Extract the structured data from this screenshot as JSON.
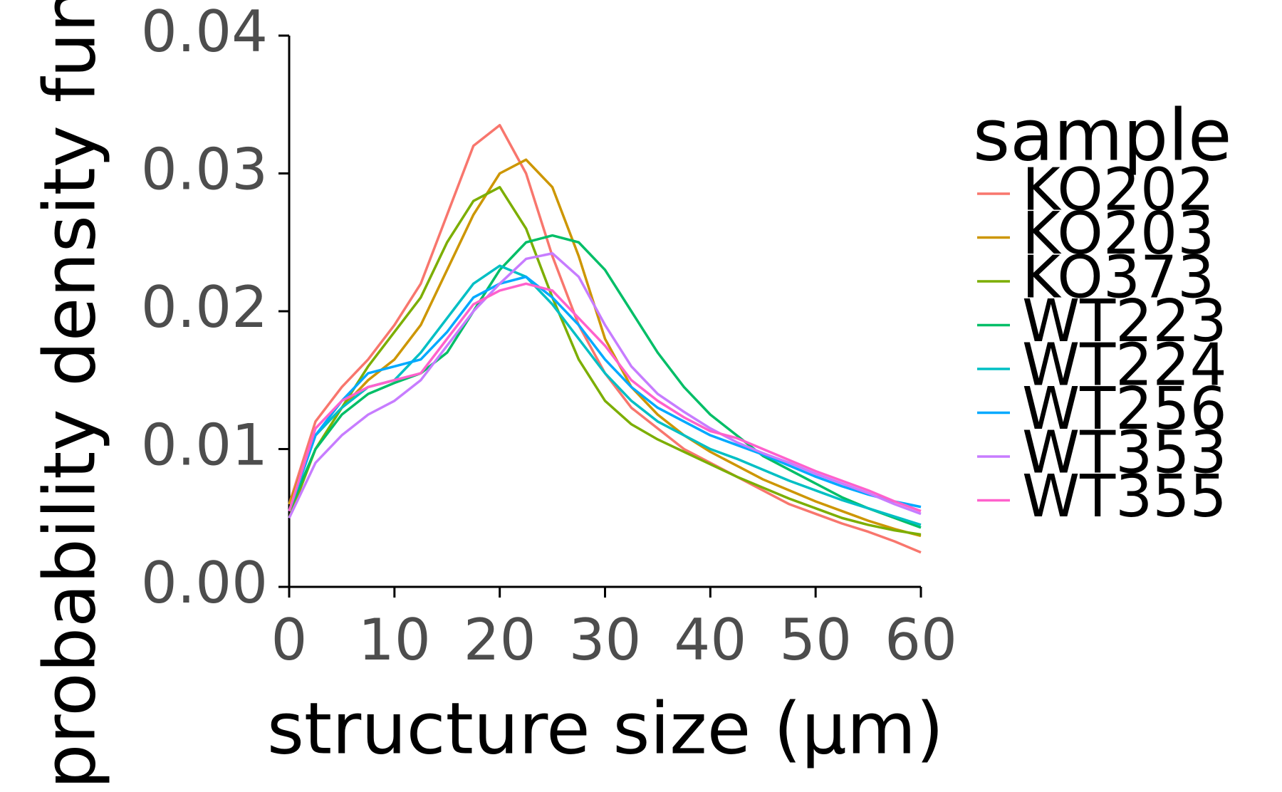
{
  "chart_data": {
    "type": "line",
    "xlabel": "structure size (µm)",
    "ylabel": "probability density function",
    "legend_title": "sample",
    "x": [
      0,
      2.5,
      5,
      7.5,
      10,
      12.5,
      15,
      17.5,
      20,
      22.5,
      25,
      27.5,
      30,
      32.5,
      35,
      37.5,
      40,
      42.5,
      45,
      47.5,
      50,
      52.5,
      55,
      57.5,
      60
    ],
    "xlim": [
      0,
      60
    ],
    "xticks": [
      0,
      10,
      20,
      30,
      40,
      50,
      60
    ],
    "ylim": [
      0,
      0.04
    ],
    "yticks": [
      {
        "value": 0,
        "label": "0.00"
      },
      {
        "value": 0.01,
        "label": "0.01"
      },
      {
        "value": 0.02,
        "label": "0.02"
      },
      {
        "value": 0.03,
        "label": "0.03"
      },
      {
        "value": 0.04,
        "label": "0.04"
      }
    ],
    "series": [
      {
        "name": "KO202",
        "color": "#F8766D",
        "values": [
          0.006,
          0.012,
          0.0145,
          0.0165,
          0.019,
          0.022,
          0.027,
          0.032,
          0.0335,
          0.03,
          0.024,
          0.019,
          0.0155,
          0.013,
          0.0115,
          0.01,
          0.009,
          0.008,
          0.007,
          0.006,
          0.0053,
          0.0046,
          0.004,
          0.0033,
          0.0025
        ]
      },
      {
        "name": "KO203",
        "color": "#CD9600",
        "values": [
          0.006,
          0.011,
          0.013,
          0.015,
          0.0165,
          0.019,
          0.023,
          0.027,
          0.03,
          0.031,
          0.029,
          0.024,
          0.018,
          0.0145,
          0.0125,
          0.011,
          0.0098,
          0.0088,
          0.0078,
          0.007,
          0.0062,
          0.0055,
          0.0048,
          0.0042,
          0.0037
        ]
      },
      {
        "name": "KO373",
        "color": "#7CAE00",
        "values": [
          0.005,
          0.01,
          0.013,
          0.016,
          0.0185,
          0.021,
          0.025,
          0.028,
          0.029,
          0.026,
          0.021,
          0.0165,
          0.0135,
          0.0118,
          0.0107,
          0.0098,
          0.0089,
          0.008,
          0.0072,
          0.0064,
          0.0057,
          0.005,
          0.0045,
          0.0041,
          0.0038
        ]
      },
      {
        "name": "WT223",
        "color": "#00BE67",
        "values": [
          0.0055,
          0.01,
          0.0125,
          0.014,
          0.0148,
          0.0155,
          0.017,
          0.02,
          0.023,
          0.025,
          0.0255,
          0.025,
          0.023,
          0.02,
          0.017,
          0.0145,
          0.0125,
          0.011,
          0.0095,
          0.0085,
          0.0075,
          0.0065,
          0.0057,
          0.005,
          0.0043
        ]
      },
      {
        "name": "WT224",
        "color": "#00BFC4",
        "values": [
          0.0055,
          0.011,
          0.013,
          0.0145,
          0.015,
          0.017,
          0.0195,
          0.022,
          0.0233,
          0.0225,
          0.0205,
          0.018,
          0.0155,
          0.0135,
          0.012,
          0.011,
          0.01,
          0.0093,
          0.0085,
          0.0077,
          0.007,
          0.0063,
          0.0057,
          0.0051,
          0.0045
        ]
      },
      {
        "name": "WT256",
        "color": "#00A9FF",
        "values": [
          0.0055,
          0.011,
          0.0135,
          0.0155,
          0.016,
          0.0165,
          0.0185,
          0.021,
          0.022,
          0.0225,
          0.021,
          0.019,
          0.0165,
          0.0145,
          0.013,
          0.012,
          0.011,
          0.0103,
          0.0096,
          0.0088,
          0.008,
          0.0073,
          0.0067,
          0.0062,
          0.0058
        ]
      },
      {
        "name": "WT353",
        "color": "#C77CFF",
        "values": [
          0.005,
          0.009,
          0.011,
          0.0125,
          0.0135,
          0.015,
          0.0175,
          0.02,
          0.022,
          0.0238,
          0.0242,
          0.0225,
          0.019,
          0.016,
          0.014,
          0.0127,
          0.0115,
          0.0105,
          0.0097,
          0.009,
          0.0082,
          0.0075,
          0.0068,
          0.006,
          0.0053
        ]
      },
      {
        "name": "WT355",
        "color": "#FF61CC",
        "values": [
          0.0055,
          0.0115,
          0.0135,
          0.0145,
          0.015,
          0.0155,
          0.018,
          0.0205,
          0.0215,
          0.022,
          0.0215,
          0.0195,
          0.0175,
          0.015,
          0.0135,
          0.0123,
          0.0113,
          0.0108,
          0.01,
          0.0092,
          0.0084,
          0.0077,
          0.007,
          0.0062,
          0.0055
        ]
      }
    ]
  }
}
